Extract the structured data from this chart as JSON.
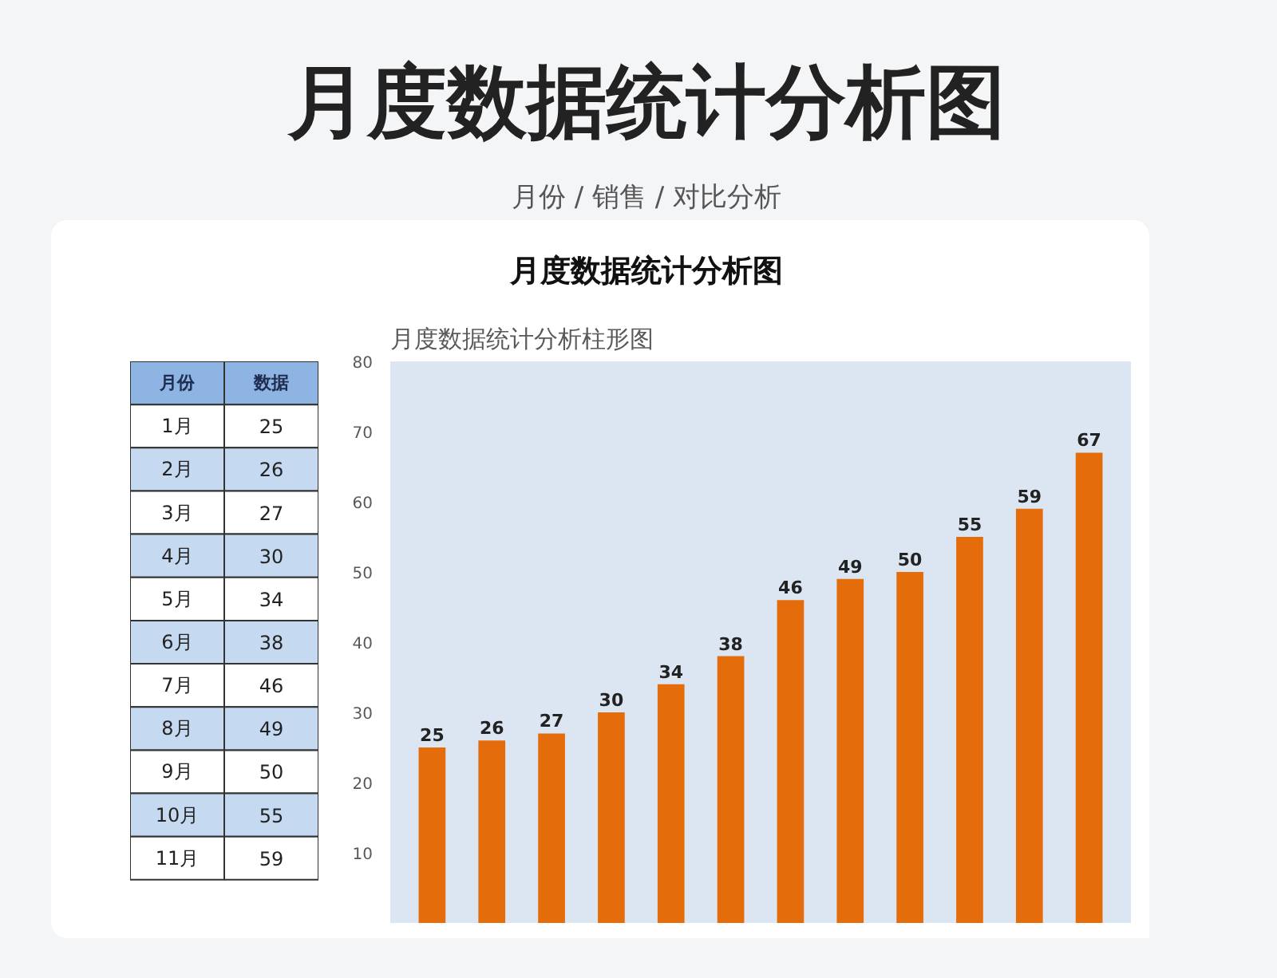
{
  "chart_data": [
    {
      "type": "heatmap",
      "ylabel": "月份",
      "categories": [
        "数据"
      ],
      "y_categories": [
        "1月",
        "2月",
        "3月",
        "4月",
        "5月",
        "6月",
        "7月",
        "8月",
        "9月",
        "10月",
        "11月"
      ],
      "cells": [
        [
          25
        ],
        [
          26
        ],
        [
          27
        ],
        [
          30
        ],
        [
          34
        ],
        [
          38
        ],
        [
          46
        ],
        [
          49
        ],
        [
          50
        ],
        [
          55
        ],
        [
          59
        ]
      ],
      "data_labels": true
    },
    {
      "type": "bar",
      "title": "月度数据统计分析柱形图",
      "subtitle": "月份 / 销售 / 对比分析",
      "annotations": [
        "月度数据统计分析图",
        "月度数据统计分析图"
      ],
      "categories": [
        null,
        null,
        null,
        null,
        null,
        null,
        null,
        null,
        null,
        null,
        null,
        null
      ],
      "values": [
        25,
        26,
        27,
        30,
        34,
        38,
        46,
        49,
        50,
        55,
        59,
        67
      ],
      "color": "#e46c0a",
      "ylim": [
        0,
        80
      ],
      "yticks": [
        10,
        20,
        30,
        40,
        50,
        60,
        70,
        80
      ],
      "data_labels": true
    }
  ]
}
